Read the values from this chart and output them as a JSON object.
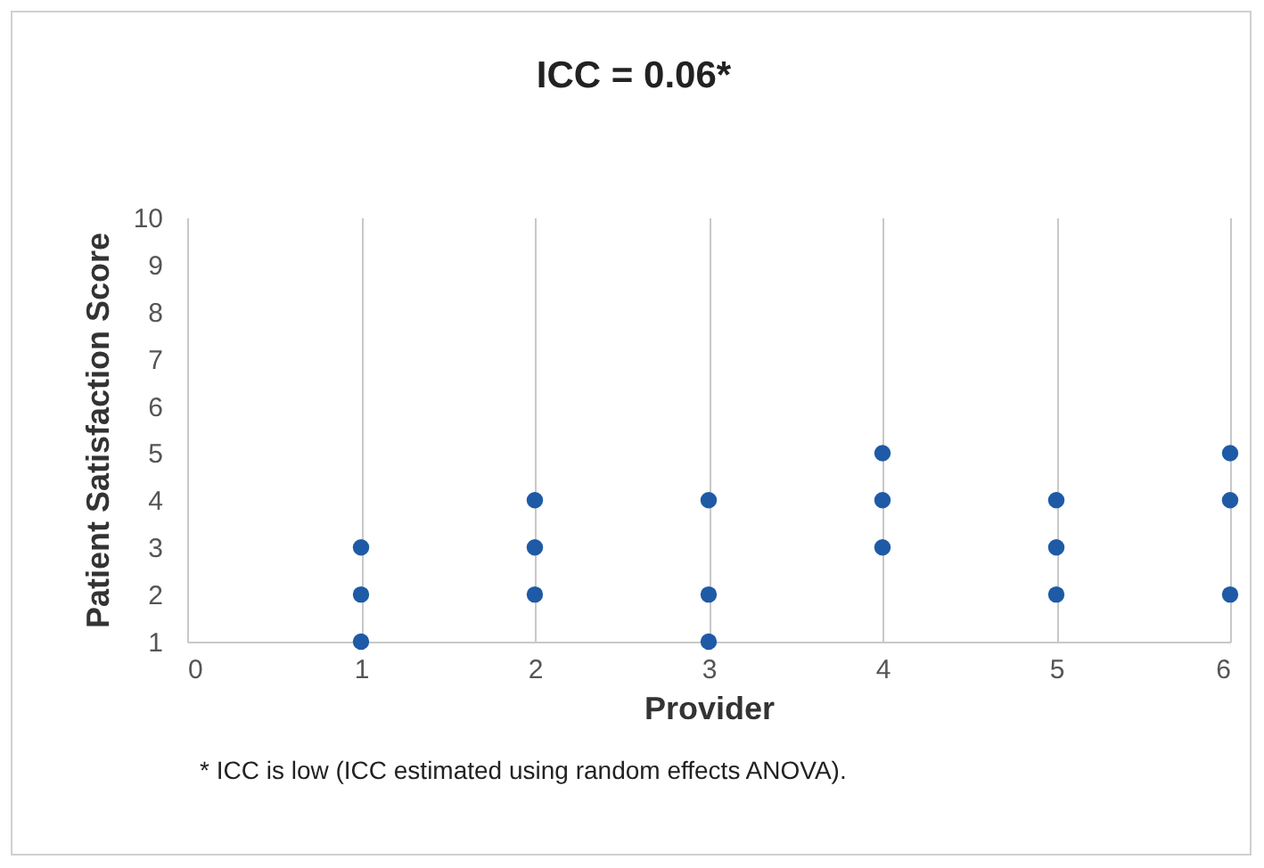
{
  "chart_data": {
    "type": "scatter",
    "title": "ICC = 0.06*",
    "xlabel": "Provider",
    "ylabel": "Patient Satisfaction Score",
    "x": [
      1,
      1,
      1,
      2,
      2,
      2,
      3,
      3,
      3,
      4,
      4,
      4,
      5,
      5,
      5,
      6,
      6,
      6
    ],
    "series": [
      {
        "color": "#1f5aa6",
        "values": [
          1,
          2,
          3,
          2,
          3,
          4,
          1,
          2,
          4,
          3,
          4,
          5,
          2,
          3,
          4,
          2,
          4,
          5
        ]
      }
    ],
    "xlim": [
      0,
      6
    ],
    "xticks": [
      0,
      1,
      2,
      3,
      4,
      5,
      6
    ],
    "ylim": [
      1,
      10
    ],
    "yticks": [
      1,
      2,
      3,
      4,
      5,
      6,
      7,
      8,
      9,
      10
    ],
    "grid": "x",
    "marker": "circle",
    "annotations": [
      "* ICC is low (ICC estimated using random effects ANOVA)."
    ]
  }
}
